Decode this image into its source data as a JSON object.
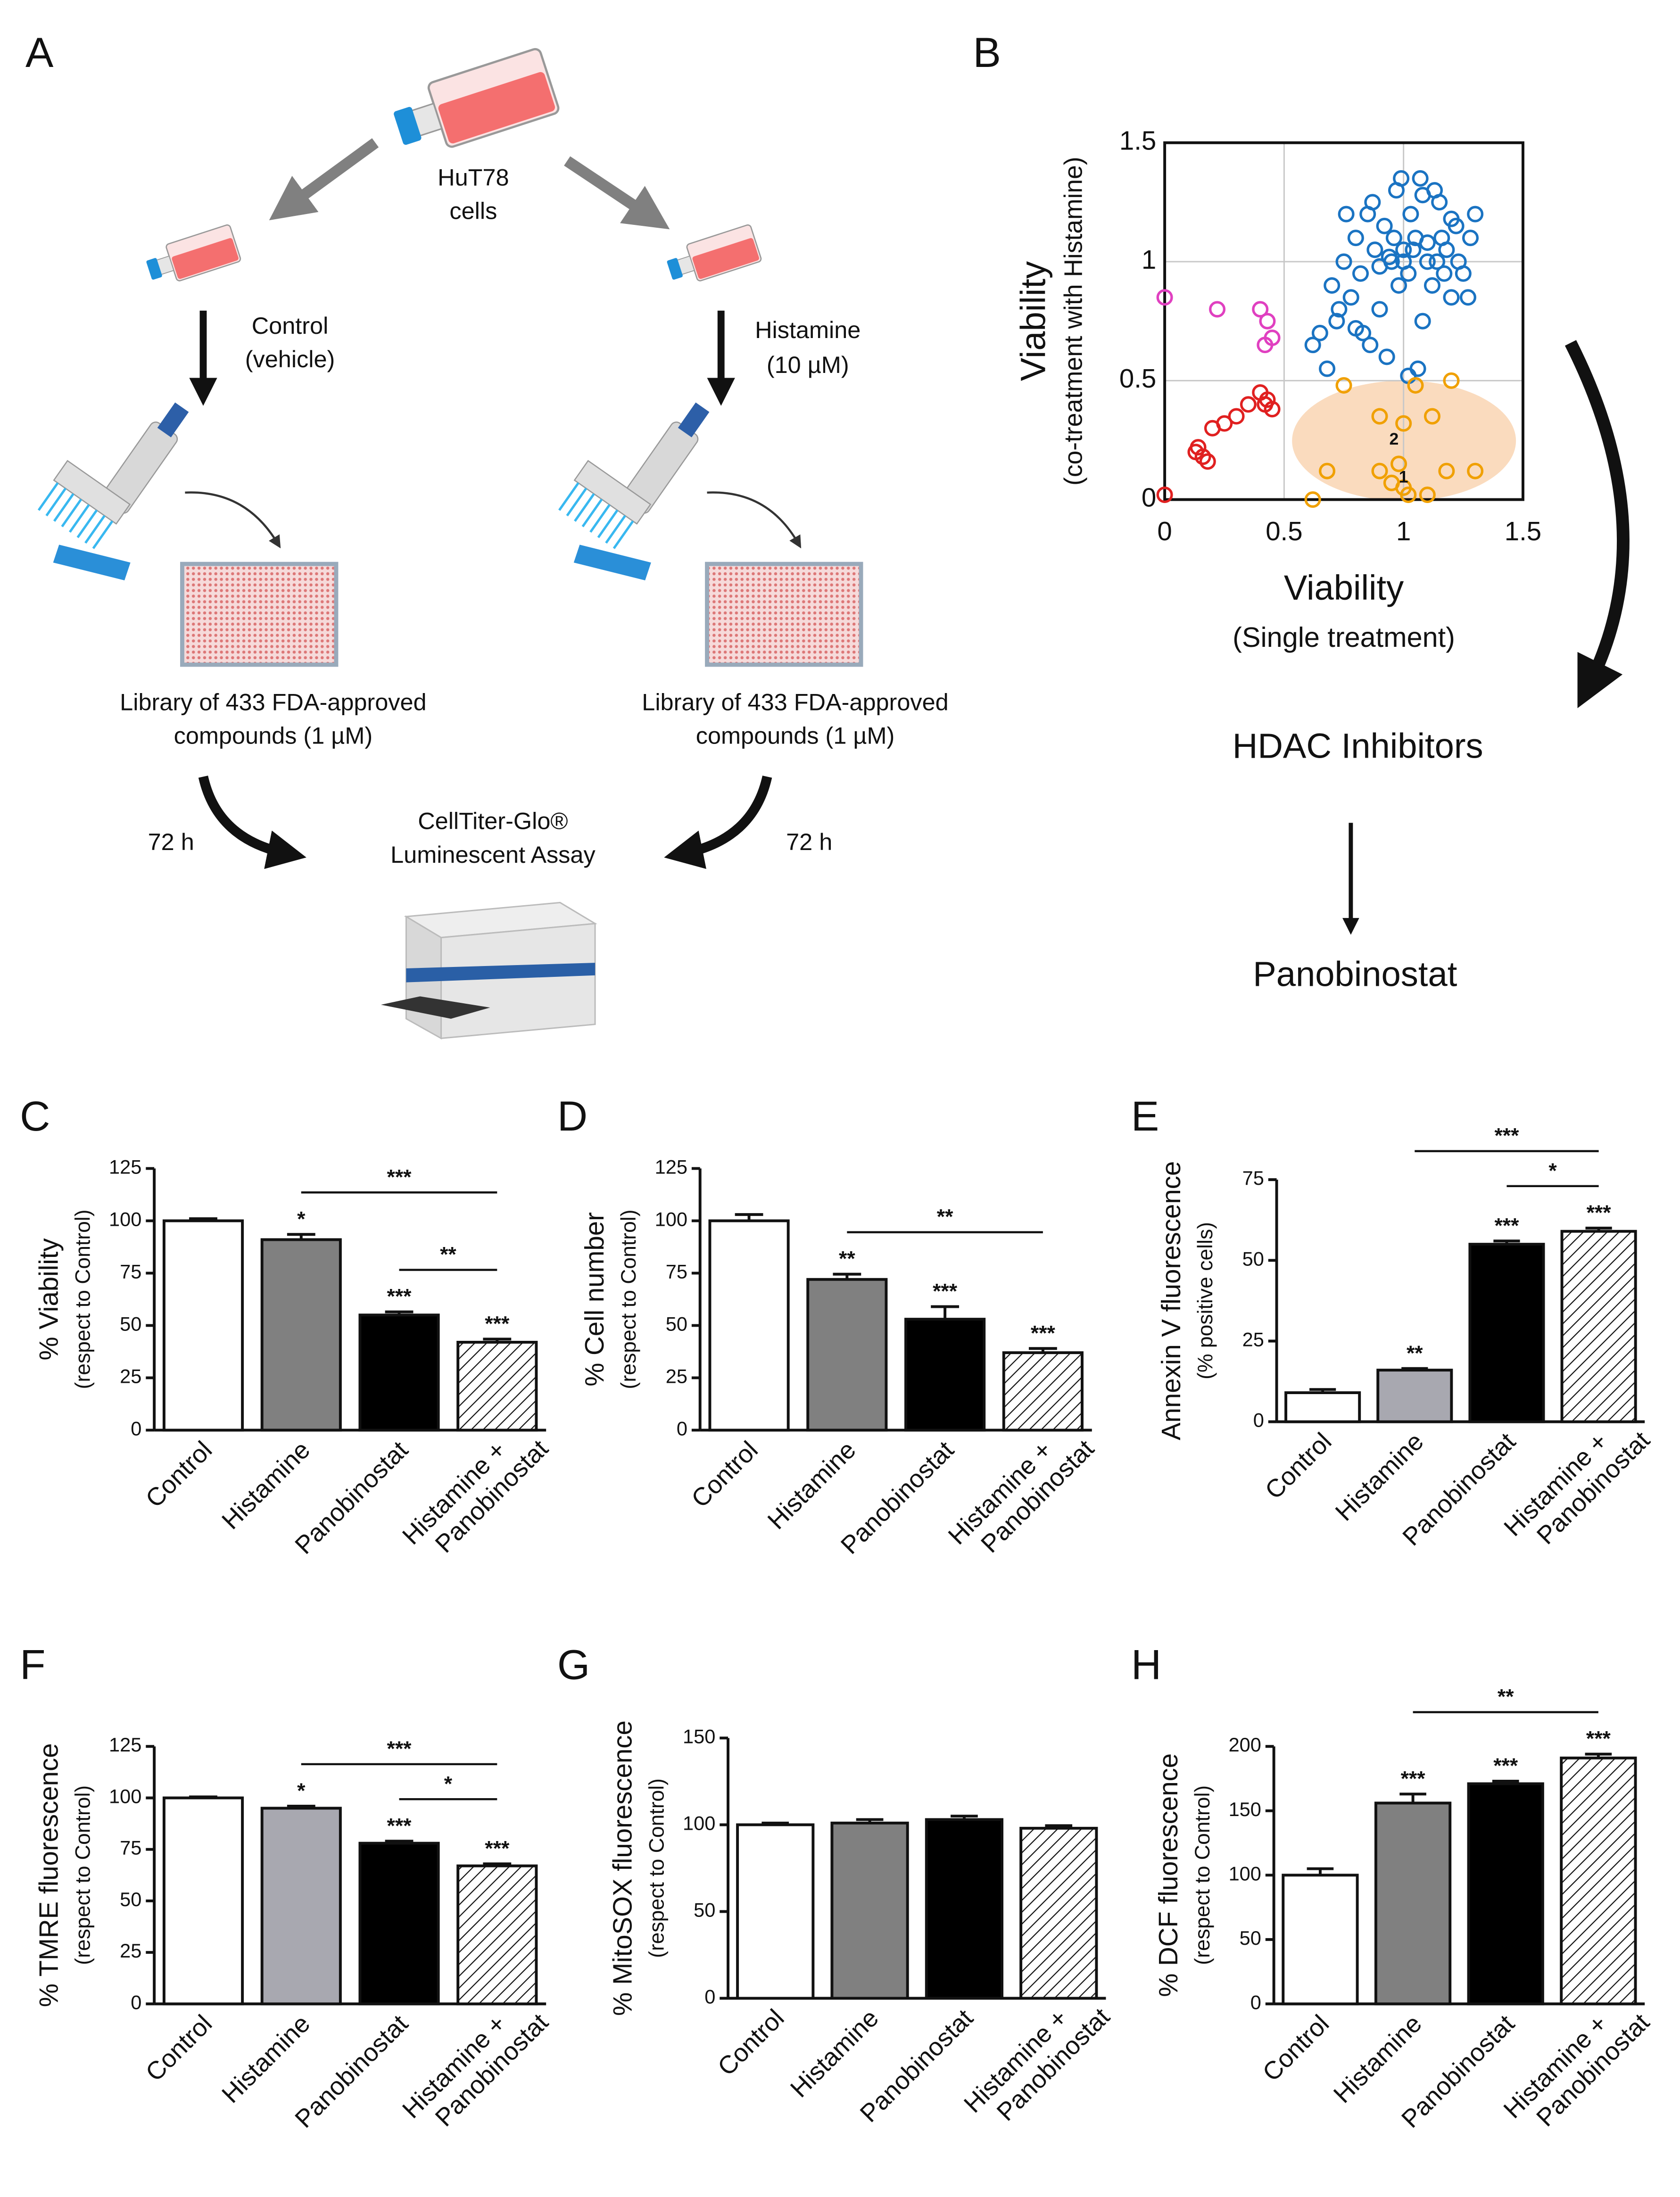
{
  "panel_labels": [
    "A",
    "B",
    "C",
    "D",
    "E",
    "F",
    "G",
    "H"
  ],
  "workflow": {
    "cells": [
      "HuT78",
      "cells"
    ],
    "control": [
      "Control",
      "(vehicle)"
    ],
    "treatment": [
      "Histamine",
      "(10 µM)"
    ],
    "library": [
      "Library of 433 FDA-approved",
      "compounds (1 µM)"
    ],
    "time": "72 h",
    "assay": [
      "CellTiter-Glo®",
      "Luminescent  Assay"
    ]
  },
  "hit_flow": [
    "HDAC Inhibitors",
    "Panobinostat"
  ],
  "chart_data": [
    {
      "type": "scatter",
      "xlabel": "Viability",
      "xlabel_sub": "(Single treatment)",
      "ylabel": "Viability",
      "ylabel_sub": "(co-treatment with Histamine)",
      "xlim": [
        0,
        1.5
      ],
      "ylim": [
        0,
        1.5
      ],
      "xticks": [
        0,
        0.5,
        1,
        1.5
      ],
      "yticks": [
        0,
        0.5,
        1,
        1.5
      ],
      "grid": true,
      "series": [
        {
          "color": "#1a73c2",
          "x": [
            0.62,
            0.65,
            0.7,
            0.72,
            0.75,
            0.78,
            0.8,
            0.82,
            0.85,
            0.88,
            0.9,
            0.92,
            0.95,
            0.97,
            1.0,
            1.02,
            1.05,
            1.07,
            1.1,
            1.12,
            1.15,
            1.18,
            1.2,
            1.22,
            1.25,
            1.28,
            1.3,
            0.68,
            0.73,
            0.83,
            0.87,
            0.93,
            0.98,
            1.03,
            1.08,
            1.13,
            1.17,
            1.23,
            1.27,
            0.76,
            0.86,
            0.96,
            1.06,
            1.16,
            1.0,
            1.04,
            0.94,
            1.1,
            0.9,
            1.14,
            0.8,
            1.2,
            1.08,
            0.99,
            1.02
          ],
          "values": [
            0.65,
            0.7,
            0.9,
            0.75,
            1.0,
            0.85,
            1.1,
            0.95,
            1.2,
            1.05,
            0.8,
            1.15,
            1.0,
            1.3,
            1.05,
            0.95,
            1.1,
            1.35,
            1.0,
            0.9,
            1.25,
            1.05,
            0.85,
            1.15,
            0.95,
            1.1,
            1.2,
            0.55,
            0.8,
            0.7,
            1.25,
            0.6,
            0.9,
            1.2,
            0.75,
            1.3,
            0.95,
            1.0,
            0.85,
            1.2,
            0.65,
            1.1,
            0.55,
            1.1,
            1.0,
            1.05,
            1.02,
            1.08,
            0.98,
            1.0,
            0.72,
            1.18,
            1.28,
            1.35,
            0.52
          ]
        },
        {
          "color": "#e040c0",
          "x": [
            0,
            0.22,
            0.4,
            0.43,
            0.42,
            0.45
          ],
          "values": [
            0.85,
            0.8,
            0.8,
            0.75,
            0.65,
            0.68
          ]
        },
        {
          "color": "#e02020",
          "x": [
            0,
            0.13,
            0.14,
            0.16,
            0.18,
            0.2,
            0.25,
            0.3,
            0.35,
            0.4,
            0.42,
            0.45,
            0.43
          ],
          "values": [
            0.02,
            0.2,
            0.22,
            0.18,
            0.16,
            0.3,
            0.32,
            0.35,
            0.4,
            0.45,
            0.4,
            0.38,
            0.42
          ]
        },
        {
          "color": "#f0a000",
          "x": [
            0.75,
            0.9,
            1.0,
            1.05,
            1.12,
            1.2,
            0.68,
            0.9,
            0.95,
            1.0,
            1.02,
            1.1,
            1.18,
            1.3,
            0.62,
            0.98
          ],
          "values": [
            0.48,
            0.35,
            0.32,
            0.48,
            0.35,
            0.5,
            0.12,
            0.12,
            0.07,
            0.05,
            0.02,
            0.02,
            0.12,
            0.12,
            0,
            0.15
          ]
        }
      ],
      "annotations": [
        {
          "text": "2",
          "x": 0.96,
          "y": 0.25
        },
        {
          "text": "1",
          "x": 1.0,
          "y": 0.09
        }
      ]
    },
    {
      "type": "bar",
      "ylabel": "% Viability",
      "ylabel_sub": "(respect to Control)",
      "categories": [
        "Control",
        "Histamine",
        "Panobinostat",
        "Histamine + Panobinostat"
      ],
      "values": [
        100,
        91,
        55,
        42
      ],
      "errors": [
        1,
        2.5,
        1.5,
        1.5
      ],
      "colors": [
        "#ffffff",
        "#808080",
        "#000000",
        "#ffffff"
      ],
      "hatch": [
        false,
        false,
        false,
        true
      ],
      "ylim": [
        0,
        125
      ],
      "yticks": [
        0,
        25,
        50,
        75,
        100,
        125
      ],
      "significance": [
        null,
        "*",
        "***",
        "***"
      ],
      "comparisons": [
        {
          "from": 1,
          "to": 3,
          "label": "***"
        },
        {
          "from": 2,
          "to": 3,
          "label": "**"
        }
      ]
    },
    {
      "type": "bar",
      "ylabel": "% Cell number",
      "ylabel_sub": "(respect to Control)",
      "categories": [
        "Control",
        "Histamine",
        "Panobinostat",
        "Histamine + Panobinostat"
      ],
      "values": [
        100,
        72,
        53,
        37
      ],
      "errors": [
        3,
        2.5,
        6,
        2
      ],
      "colors": [
        "#ffffff",
        "#808080",
        "#000000",
        "#ffffff"
      ],
      "hatch": [
        false,
        false,
        false,
        true
      ],
      "ylim": [
        0,
        125
      ],
      "yticks": [
        0,
        25,
        50,
        75,
        100,
        125
      ],
      "significance": [
        null,
        "**",
        "***",
        "***"
      ],
      "comparisons": [
        {
          "from": 1,
          "to": 3,
          "label": "**"
        }
      ]
    },
    {
      "type": "bar",
      "ylabel": "Annexin V fluorescence",
      "ylabel_sub": "(% positive cells)",
      "categories": [
        "Control",
        "Histamine",
        "Panobinostat",
        "Histamine + Panobinostat"
      ],
      "values": [
        9,
        16,
        55,
        59
      ],
      "errors": [
        1,
        0.5,
        1,
        1
      ],
      "colors": [
        "#ffffff",
        "#a8a8b0",
        "#000000",
        "#ffffff"
      ],
      "hatch": [
        false,
        false,
        false,
        true
      ],
      "ylim": [
        0,
        75
      ],
      "yticks": [
        0,
        25,
        50,
        75
      ],
      "significance": [
        null,
        "**",
        "***",
        "***"
      ],
      "comparisons": [
        {
          "from": 1,
          "to": 3,
          "label": "***"
        },
        {
          "from": 2,
          "to": 3,
          "label": "*"
        }
      ]
    },
    {
      "type": "bar",
      "ylabel": "% TMRE fluorescence",
      "ylabel_sub": "(respect to Control)",
      "categories": [
        "Control",
        "Histamine",
        "Panobinostat",
        "Histamine + Panobinostat"
      ],
      "values": [
        100,
        95,
        78,
        67
      ],
      "errors": [
        0.5,
        1,
        1,
        1
      ],
      "colors": [
        "#ffffff",
        "#a8a8b0",
        "#000000",
        "#ffffff"
      ],
      "hatch": [
        false,
        false,
        false,
        true
      ],
      "ylim": [
        0,
        125
      ],
      "yticks": [
        0,
        25,
        50,
        75,
        100,
        125
      ],
      "significance": [
        null,
        "*",
        "***",
        "***"
      ],
      "comparisons": [
        {
          "from": 1,
          "to": 3,
          "label": "***"
        },
        {
          "from": 2,
          "to": 3,
          "label": "*"
        }
      ]
    },
    {
      "type": "bar",
      "ylabel": "% MitoSOX fluorescence",
      "ylabel_sub": "(respect to Control)",
      "categories": [
        "Control",
        "Histamine",
        "Panobinostat",
        "Histamine + Panobinostat"
      ],
      "values": [
        100,
        101,
        103,
        98
      ],
      "errors": [
        1,
        2,
        2,
        1.5
      ],
      "colors": [
        "#ffffff",
        "#808080",
        "#000000",
        "#ffffff"
      ],
      "hatch": [
        false,
        false,
        false,
        true
      ],
      "ylim": [
        0,
        150
      ],
      "yticks": [
        0,
        50,
        100,
        150
      ],
      "significance": [
        null,
        null,
        null,
        null
      ],
      "comparisons": []
    },
    {
      "type": "bar",
      "ylabel": "% DCF fluorescence",
      "ylabel_sub": "(respect to Control)",
      "categories": [
        "Control",
        "Histamine",
        "Panobinostat",
        "Histamine + Panobinostat"
      ],
      "values": [
        100,
        156,
        171,
        191
      ],
      "errors": [
        5,
        7,
        2,
        3
      ],
      "colors": [
        "#ffffff",
        "#808080",
        "#000000",
        "#ffffff"
      ],
      "hatch": [
        false,
        false,
        false,
        true
      ],
      "ylim": [
        0,
        200
      ],
      "yticks": [
        0,
        50,
        100,
        150,
        200
      ],
      "significance": [
        null,
        "***",
        "***",
        "***"
      ],
      "comparisons": [
        {
          "from": 1,
          "to": 3,
          "label": "**"
        }
      ]
    }
  ]
}
